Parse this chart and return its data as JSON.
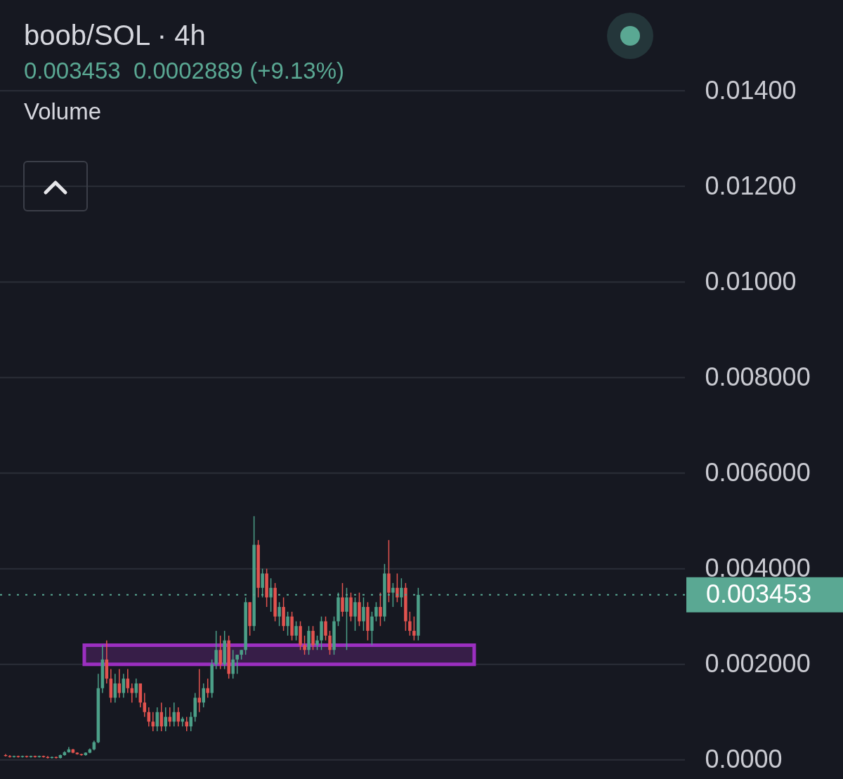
{
  "chart_data": {
    "type": "candlestick",
    "title": "boob/SOL · 4h",
    "subtitle": "0.003453  0.0002889 (+9.13%)",
    "annotations": [
      "Volume"
    ],
    "categories": [
      null,
      null,
      null,
      null,
      null,
      null,
      null,
      null,
      null,
      null,
      null,
      null,
      null,
      null,
      null,
      null,
      null,
      null,
      null,
      null,
      null,
      null,
      null,
      null,
      null,
      null,
      null,
      null,
      null,
      null,
      null,
      null,
      null,
      null,
      null,
      null,
      null,
      null,
      null,
      null,
      null,
      null,
      null,
      null,
      null,
      null,
      null,
      null,
      null,
      null,
      null,
      null,
      null,
      null,
      null,
      null,
      null,
      null,
      null,
      null,
      null,
      null,
      null,
      null,
      null,
      null,
      null,
      null,
      null,
      null,
      null,
      null,
      null,
      null,
      null,
      null,
      null,
      null,
      null,
      null,
      null,
      null,
      null,
      null,
      null,
      null,
      null,
      null,
      null,
      null,
      null,
      null,
      null,
      null,
      null,
      null,
      null,
      null,
      null,
      null,
      null,
      null,
      null,
      null,
      null,
      null,
      null,
      null,
      null,
      null,
      null,
      null,
      null,
      null,
      null,
      null,
      null,
      null,
      null,
      null,
      null,
      null,
      null,
      null,
      null,
      null,
      null,
      null,
      null,
      null,
      null,
      null,
      null,
      null,
      null,
      null,
      null,
      null,
      null,
      null,
      null,
      null,
      null,
      null,
      null,
      null,
      null,
      null,
      null,
      null,
      null,
      null,
      null,
      null,
      null,
      null,
      null,
      null,
      null,
      null,
      null
    ],
    "ohlc": [
      [
        0.0001,
        0.00012,
        7e-05,
        8e-05
      ],
      [
        8e-05,
        0.0001,
        5e-05,
        6e-05
      ],
      [
        6e-05,
        9e-05,
        5e-05,
        8e-05
      ],
      [
        8e-05,
        9e-05,
        5e-05,
        6e-05
      ],
      [
        6e-05,
        9e-05,
        5e-05,
        8e-05
      ],
      [
        8e-05,
        9e-05,
        5e-05,
        6e-05
      ],
      [
        6e-05,
        9e-05,
        5e-05,
        8e-05
      ],
      [
        8e-05,
        9e-05,
        5e-05,
        6e-05
      ],
      [
        6e-05,
        9e-05,
        5e-05,
        8e-05
      ],
      [
        8e-05,
        9e-05,
        5e-05,
        6e-05
      ],
      [
        6e-05,
        8e-05,
        3e-05,
        4e-05
      ],
      [
        4e-05,
        7e-05,
        3e-05,
        6e-05
      ],
      [
        6e-05,
        7e-05,
        3e-05,
        4e-05
      ],
      [
        4e-05,
        0.00011,
        3e-05,
        0.0001
      ],
      [
        0.0001,
        0.00018,
        9e-05,
        0.00016
      ],
      [
        0.00016,
        0.00027,
        0.00015,
        0.00022
      ],
      [
        0.00022,
        0.00023,
        0.00014,
        0.00015
      ],
      [
        0.00015,
        0.00016,
        0.00011,
        0.00012
      ],
      [
        0.00012,
        0.00013,
        9e-05,
        0.0001
      ],
      [
        0.0001,
        0.00016,
        9e-05,
        0.00015
      ],
      [
        0.00015,
        0.00024,
        0.00014,
        0.00022
      ],
      [
        0.00022,
        0.0004,
        0.0002,
        0.00037
      ],
      [
        0.00037,
        0.0018,
        0.00035,
        0.0015
      ],
      [
        0.0015,
        0.0024,
        0.0014,
        0.0021
      ],
      [
        0.0021,
        0.0025,
        0.0016,
        0.0017
      ],
      [
        0.0017,
        0.0019,
        0.0012,
        0.0013
      ],
      [
        0.0013,
        0.0018,
        0.0012,
        0.0016
      ],
      [
        0.0016,
        0.0019,
        0.0013,
        0.0014
      ],
      [
        0.0014,
        0.0018,
        0.0013,
        0.0017
      ],
      [
        0.0017,
        0.0019,
        0.0014,
        0.0015
      ],
      [
        0.0015,
        0.0016,
        0.0012,
        0.0014
      ],
      [
        0.0014,
        0.0017,
        0.0013,
        0.0016
      ],
      [
        0.0016,
        0.0016,
        0.0011,
        0.0012
      ],
      [
        0.0012,
        0.0014,
        0.0009,
        0.001
      ],
      [
        0.001,
        0.0011,
        0.0007,
        0.0008
      ],
      [
        0.0008,
        0.001,
        0.0006,
        0.0007
      ],
      [
        0.0007,
        0.0011,
        0.0006,
        0.001
      ],
      [
        0.001,
        0.0012,
        0.0006,
        0.0007
      ],
      [
        0.0007,
        0.0011,
        0.0006,
        0.0009
      ],
      [
        0.0009,
        0.0011,
        0.0007,
        0.0008
      ],
      [
        0.0008,
        0.0012,
        0.0007,
        0.001
      ],
      [
        0.001,
        0.0011,
        0.0007,
        0.0008
      ],
      [
        0.0008,
        0.0009,
        0.0007,
        0.00086
      ],
      [
        0.0008,
        0.0009,
        0.0006,
        0.0007
      ],
      [
        0.0007,
        0.001,
        0.0006,
        0.0009
      ],
      [
        0.0009,
        0.0014,
        0.0008,
        0.0013
      ],
      [
        0.0013,
        0.0019,
        0.001,
        0.0012
      ],
      [
        0.0012,
        0.0016,
        0.0011,
        0.0015
      ],
      [
        0.0015,
        0.0017,
        0.0013,
        0.0014
      ],
      [
        0.0014,
        0.0021,
        0.0013,
        0.002
      ],
      [
        0.002,
        0.0027,
        0.0019,
        0.0023
      ],
      [
        0.0023,
        0.0026,
        0.0019,
        0.002
      ],
      [
        0.002,
        0.0027,
        0.0019,
        0.0025
      ],
      [
        0.0025,
        0.0026,
        0.0017,
        0.0018
      ],
      [
        0.0018,
        0.0023,
        0.0017,
        0.0021
      ],
      [
        0.0021,
        0.0022,
        0.0018,
        0.0022
      ],
      [
        0.0022,
        0.0023,
        0.0021,
        0.0023
      ],
      [
        0.0023,
        0.0034,
        0.0022,
        0.0033
      ],
      [
        0.0033,
        0.0033,
        0.0026,
        0.0028
      ],
      [
        0.0028,
        0.0051,
        0.0027,
        0.0045
      ],
      [
        0.0045,
        0.0046,
        0.0034,
        0.0036
      ],
      [
        0.0036,
        0.004,
        0.0034,
        0.0039
      ],
      [
        0.0039,
        0.004,
        0.0032,
        0.0034
      ],
      [
        0.0034,
        0.0038,
        0.0031,
        0.0036
      ],
      [
        0.0036,
        0.0037,
        0.0029,
        0.003
      ],
      [
        0.003,
        0.0033,
        0.0028,
        0.0032
      ],
      [
        0.0032,
        0.0034,
        0.0027,
        0.0028
      ],
      [
        0.0028,
        0.0031,
        0.0026,
        0.003
      ],
      [
        0.003,
        0.0031,
        0.0025,
        0.0026
      ],
      [
        0.0026,
        0.0029,
        0.0025,
        0.0028
      ],
      [
        0.0028,
        0.0029,
        0.0023,
        0.0024
      ],
      [
        0.0024,
        0.0026,
        0.0022,
        0.0023
      ],
      [
        0.0023,
        0.0028,
        0.0022,
        0.0027
      ],
      [
        0.0027,
        0.0028,
        0.0023,
        0.0024
      ],
      [
        0.0024,
        0.0026,
        0.0023,
        0.0025
      ],
      [
        0.0025,
        0.003,
        0.0023,
        0.0029
      ],
      [
        0.0029,
        0.003,
        0.0025,
        0.0026
      ],
      [
        0.0026,
        0.0027,
        0.0022,
        0.0023
      ],
      [
        0.0023,
        0.003,
        0.0022,
        0.0029
      ],
      [
        0.0029,
        0.0035,
        0.0028,
        0.0034
      ],
      [
        0.0034,
        0.0037,
        0.003,
        0.0031
      ],
      [
        0.0031,
        0.0036,
        0.0023,
        0.0034
      ],
      [
        0.0034,
        0.0035,
        0.0029,
        0.003
      ],
      [
        0.003,
        0.0034,
        0.0027,
        0.0033
      ],
      [
        0.0033,
        0.0035,
        0.0028,
        0.0029
      ],
      [
        0.0029,
        0.0034,
        0.0027,
        0.0032
      ],
      [
        0.0032,
        0.0033,
        0.0025,
        0.0027
      ],
      [
        0.0027,
        0.0031,
        0.0024,
        0.003
      ],
      [
        0.003,
        0.0033,
        0.0029,
        0.0032
      ],
      [
        0.0032,
        0.0035,
        0.0028,
        0.003
      ],
      [
        0.003,
        0.0041,
        0.0029,
        0.0039
      ],
      [
        0.0039,
        0.0046,
        0.0033,
        0.0035
      ],
      [
        0.0035,
        0.0037,
        0.0032,
        0.0036
      ],
      [
        0.0036,
        0.0039,
        0.0033,
        0.0034
      ],
      [
        0.0034,
        0.0038,
        0.0032,
        0.0036
      ],
      [
        0.0036,
        0.0037,
        0.0027,
        0.0029
      ],
      [
        0.0029,
        0.0031,
        0.0026,
        0.0027
      ],
      [
        0.0027,
        0.003,
        0.0025,
        0.0026
      ],
      [
        0.0026,
        0.0036,
        0.0025,
        0.003453
      ],
      null,
      null,
      null,
      null,
      null,
      null,
      null,
      null,
      null,
      null,
      null,
      null,
      null,
      null,
      null,
      null,
      null,
      null,
      null,
      null,
      null,
      null,
      null,
      null,
      null,
      null,
      null,
      null,
      null,
      null,
      null,
      null,
      null,
      null,
      null,
      null,
      null,
      null,
      null,
      null,
      null,
      null,
      null,
      null,
      null,
      null,
      null,
      null,
      null,
      null,
      null,
      null,
      null,
      null,
      null,
      null,
      null,
      null,
      null,
      null,
      null,
      null
    ],
    "ylim": [
      -0.0004,
      0.0159
    ],
    "yticks": [
      {
        "value": 0,
        "label": "0.0000"
      },
      {
        "value": 0.002,
        "label": "0.002000"
      },
      {
        "value": 0.004,
        "label": "0.004000"
      },
      {
        "value": 0.006,
        "label": "0.006000"
      },
      {
        "value": 0.008,
        "label": "0.008000"
      },
      {
        "value": 0.01,
        "label": "0.01000"
      },
      {
        "value": 0.012,
        "label": "0.01200"
      },
      {
        "value": 0.014,
        "label": "0.01400"
      }
    ],
    "grid": "y",
    "tick_labels": "y",
    "ref_lines": [
      {
        "axis": "y",
        "value": 0.003453,
        "label": "0.003453",
        "color": "#5aa893",
        "line_style": "dotted"
      }
    ],
    "bands": [
      {
        "axis": "y",
        "from": 0.002,
        "to": 0.0024,
        "color": "#9b2fc0"
      }
    ]
  }
}
